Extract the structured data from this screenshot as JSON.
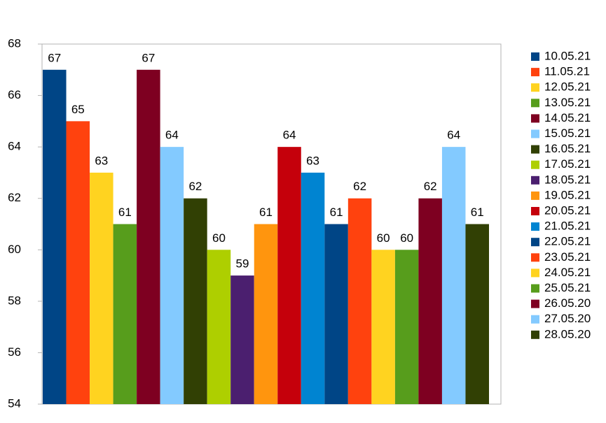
{
  "chart_data": {
    "type": "bar",
    "ylim": [
      54,
      68
    ],
    "yticks": [
      54,
      56,
      58,
      60,
      62,
      64,
      66,
      68
    ],
    "legend": "right",
    "series": [
      {
        "name": "10.05.21",
        "color": "#004586",
        "values": [
          67
        ]
      },
      {
        "name": "11.05.21",
        "color": "#ff420e",
        "values": [
          65
        ]
      },
      {
        "name": "12.05.21",
        "color": "#ffd320",
        "values": [
          63
        ]
      },
      {
        "name": "13.05.21",
        "color": "#579d1c",
        "values": [
          61
        ]
      },
      {
        "name": "14.05.21",
        "color": "#7e0021",
        "values": [
          67
        ]
      },
      {
        "name": "15.05.21",
        "color": "#83caff",
        "values": [
          64
        ]
      },
      {
        "name": "16.05.21",
        "color": "#314004",
        "values": [
          62
        ]
      },
      {
        "name": "17.05.21",
        "color": "#aecf00",
        "values": [
          60
        ]
      },
      {
        "name": "18.05.21",
        "color": "#4b1f6f",
        "values": [
          59
        ]
      },
      {
        "name": "19.05.21",
        "color": "#ff950e",
        "values": [
          61
        ]
      },
      {
        "name": "20.05.21",
        "color": "#c5000b",
        "values": [
          64
        ]
      },
      {
        "name": "21.05.21",
        "color": "#0084d1",
        "values": [
          63
        ]
      },
      {
        "name": "22.05.21",
        "color": "#004586",
        "values": [
          61
        ]
      },
      {
        "name": "23.05.21",
        "color": "#ff420e",
        "values": [
          62
        ]
      },
      {
        "name": "24.05.21",
        "color": "#ffd320",
        "values": [
          60
        ]
      },
      {
        "name": "25.05.21",
        "color": "#579d1c",
        "values": [
          60
        ]
      },
      {
        "name": "26.05.20",
        "color": "#7e0021",
        "values": [
          62
        ]
      },
      {
        "name": "27.05.20",
        "color": "#83caff",
        "values": [
          64
        ]
      },
      {
        "name": "28.05.20",
        "color": "#314004",
        "values": [
          61
        ]
      }
    ]
  }
}
